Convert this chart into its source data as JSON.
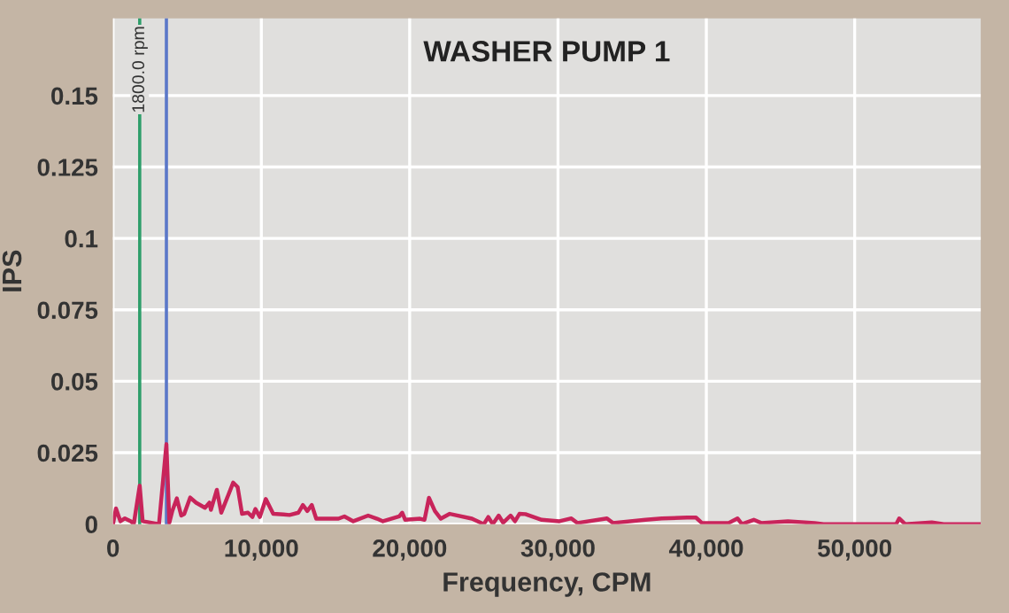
{
  "chart_data": {
    "type": "line",
    "title": "WASHER PUMP 1",
    "xlabel": "Frequency, CPM",
    "ylabel": "IPS",
    "x": [
      0,
      200,
      500,
      800,
      1200,
      1400,
      1800,
      2000,
      3100,
      3600,
      3800,
      4000,
      4300,
      4600,
      4800,
      5200,
      5600,
      6200,
      6500,
      6600,
      7000,
      7300,
      8100,
      8400,
      8700,
      9100,
      9400,
      9600,
      9900,
      10300,
      10800,
      11500,
      11900,
      12500,
      12800,
      13100,
      13400,
      13700,
      15200,
      15600,
      16200,
      17200,
      17800,
      18200,
      19300,
      19500,
      19700,
      20700,
      21000,
      21300,
      21700,
      22100,
      22700,
      24200,
      25000,
      25300,
      25600,
      26000,
      26300,
      26800,
      27100,
      27400,
      27800,
      28900,
      30100,
      30900,
      31300,
      33300,
      33700,
      35900,
      37000,
      38700,
      39300,
      39700,
      41500,
      42100,
      42400,
      43200,
      43700,
      45500,
      47300,
      47900,
      52800,
      53000,
      53400,
      55200,
      56000,
      58500
    ],
    "series": [
      {
        "color": "#c8245a",
        "values": [
          0,
          0.0055,
          0.001,
          0.002,
          0.001,
          0,
          0.0135,
          0.001,
          0,
          0.028,
          0.0005,
          0.0046,
          0.009,
          0.003,
          0.0035,
          0.0093,
          0.0075,
          0.0057,
          0.0075,
          0.005,
          0.012,
          0.004,
          0.0145,
          0.013,
          0.0036,
          0.004,
          0.0025,
          0.0053,
          0.0025,
          0.0088,
          0.0036,
          0.0034,
          0.0032,
          0.004,
          0.0067,
          0.0046,
          0.0067,
          0.0019,
          0.0019,
          0.0027,
          0.001,
          0.003,
          0.0019,
          0.001,
          0.0027,
          0.004,
          0.0015,
          0.0019,
          0.0015,
          0.0092,
          0.0046,
          0.0019,
          0.0036,
          0.0019,
          0,
          0.0025,
          0,
          0.003,
          0.0005,
          0.003,
          0.001,
          0.0036,
          0.0035,
          0.0015,
          0.001,
          0.002,
          0.0004,
          0.002,
          0.0004,
          0.0015,
          0.002,
          0.0023,
          0.0023,
          0.0004,
          0.0004,
          0.002,
          0,
          0.0015,
          0.0004,
          0.001,
          0.0004,
          0,
          0,
          0.002,
          0,
          0.0006,
          0,
          0
        ]
      }
    ],
    "xlim": [
      0,
      58500
    ],
    "ylim": [
      0,
      0.177
    ],
    "xticks": [
      0,
      {
        "value": 10000,
        "label": "10,000"
      },
      {
        "value": 20000,
        "label": "20,000"
      },
      {
        "value": 30000,
        "label": "30,000"
      },
      {
        "value": 40000,
        "label": "40,000"
      },
      {
        "value": 50000,
        "label": "50,000"
      }
    ],
    "yticks": [
      0,
      0.025,
      0.05,
      0.075,
      0.1,
      0.125,
      0.15
    ],
    "ref_lines": [
      {
        "axis": "x",
        "value": 1800,
        "label": "1800.0 rpm",
        "color": "#2e9e6a"
      },
      {
        "axis": "x",
        "value": 3600,
        "color": "#5b78c8"
      }
    ],
    "grid": true,
    "marker": "none",
    "line_style": "solid"
  }
}
